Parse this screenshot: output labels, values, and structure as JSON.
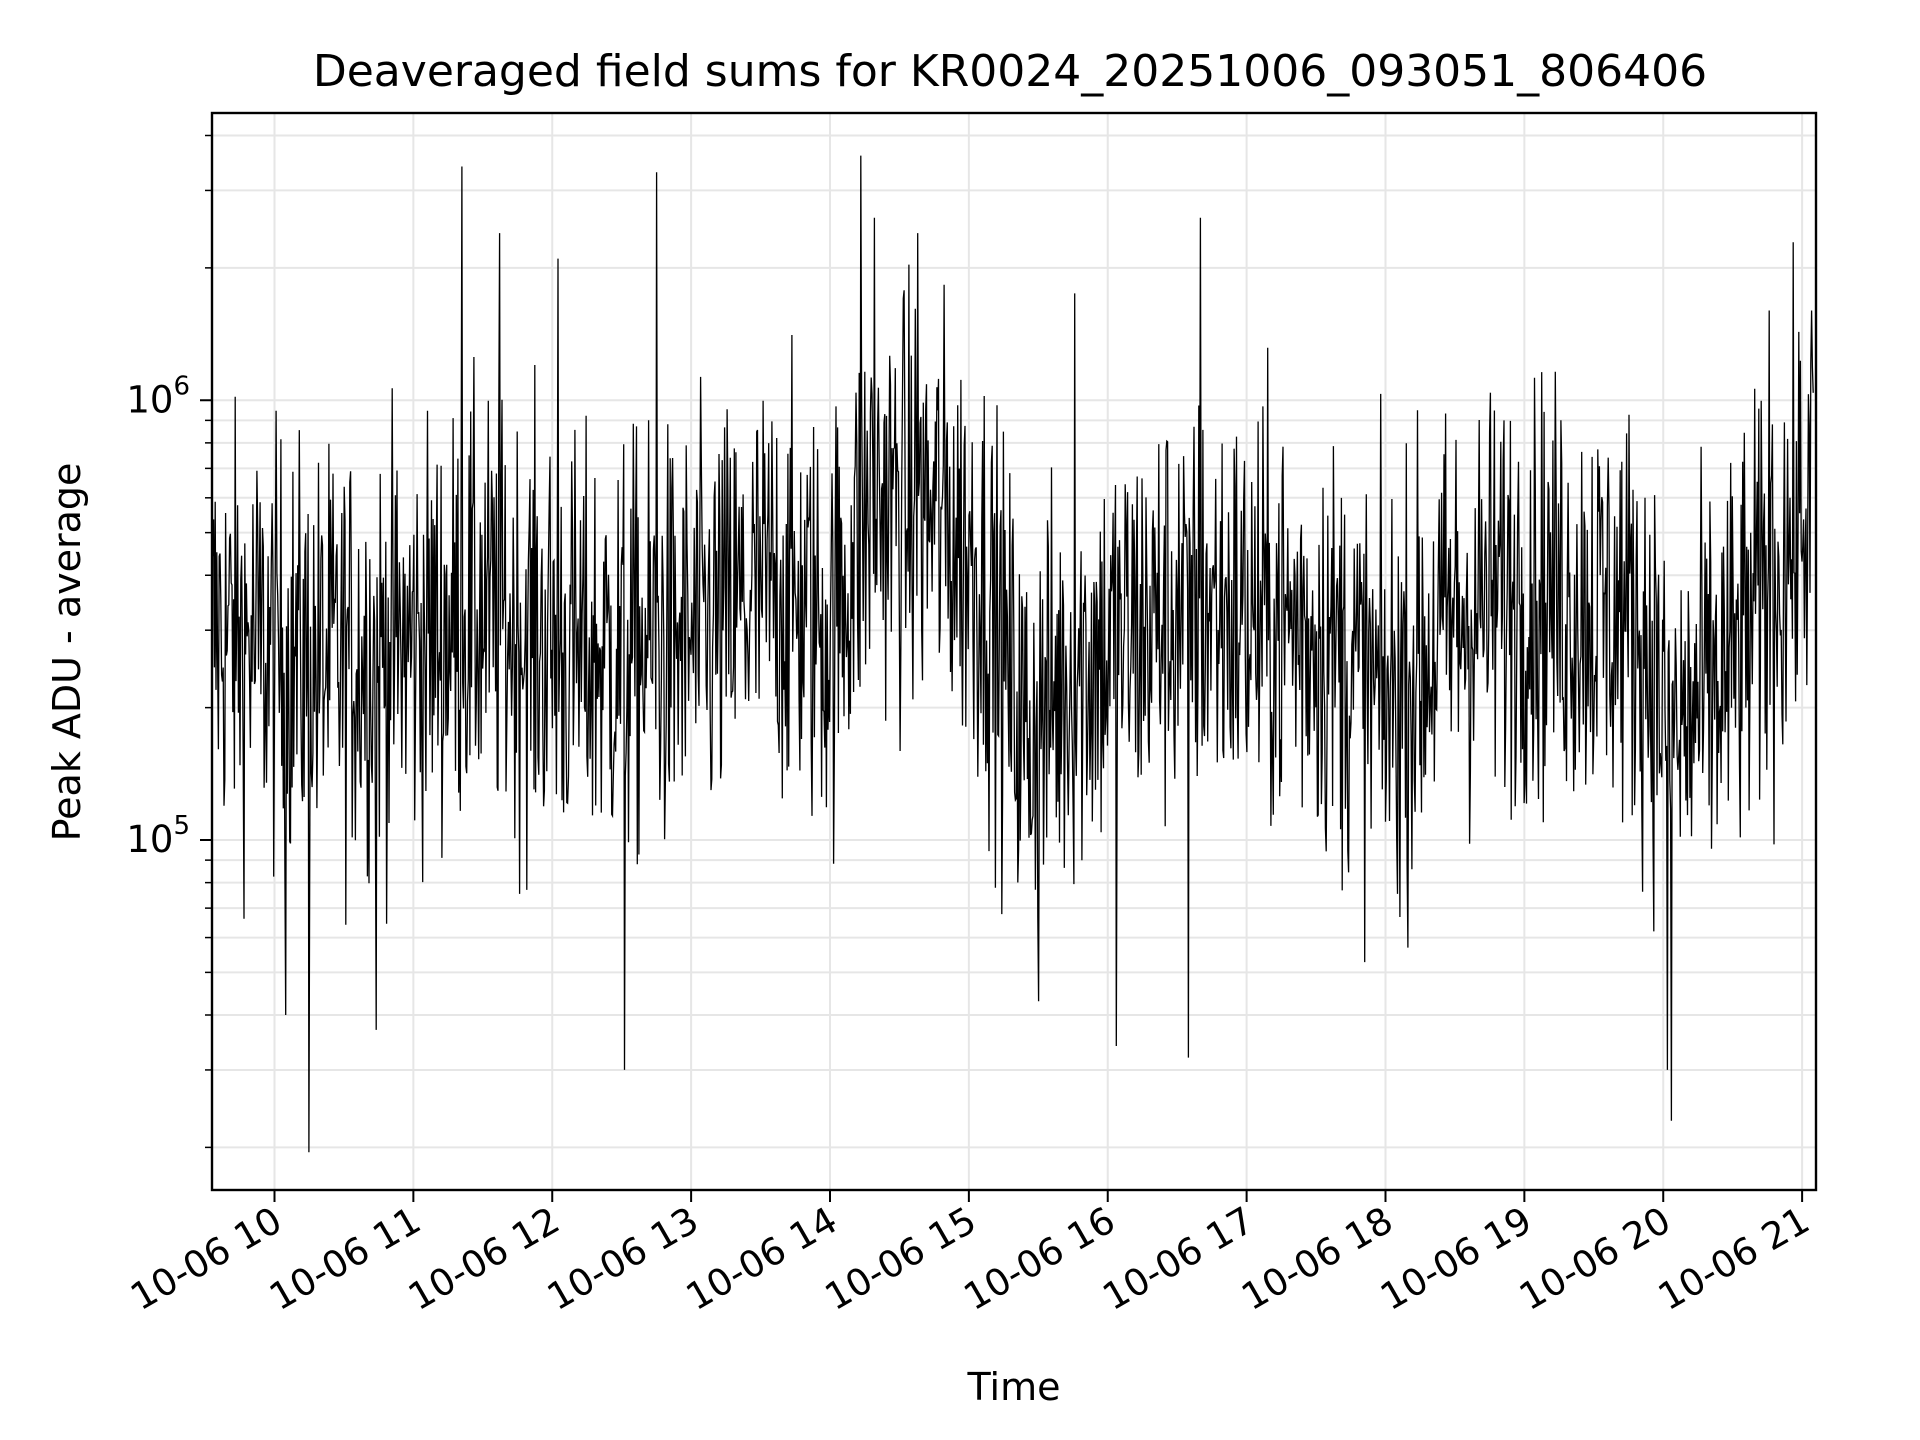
{
  "chart_data": {
    "type": "line",
    "title": "Deaveraged field sums for KR0024_20251006_093051_806406",
    "xlabel": "Time",
    "ylabel": "Peak ADU - average",
    "yscale": "log",
    "ylim": [
      16000,
      4500000
    ],
    "xlim_hours": [
      9.55,
      21.1
    ],
    "grid": true,
    "line_color": "#000000",
    "grid_color": "#e6e6e6",
    "x_ticks": [
      {
        "hour": 10,
        "label": "10-06 10"
      },
      {
        "hour": 11,
        "label": "10-06 11"
      },
      {
        "hour": 12,
        "label": "10-06 12"
      },
      {
        "hour": 13,
        "label": "10-06 13"
      },
      {
        "hour": 14,
        "label": "10-06 14"
      },
      {
        "hour": 15,
        "label": "10-06 15"
      },
      {
        "hour": 16,
        "label": "10-06 16"
      },
      {
        "hour": 17,
        "label": "10-06 17"
      },
      {
        "hour": 18,
        "label": "10-06 18"
      },
      {
        "hour": 19,
        "label": "10-06 19"
      },
      {
        "hour": 20,
        "label": "10-06 20"
      },
      {
        "hour": 21,
        "label": "10-06 21"
      }
    ],
    "y_ticks": [
      {
        "value": 100000,
        "base": "10",
        "exp": "5"
      },
      {
        "value": 1000000,
        "base": "10",
        "exp": "6"
      }
    ],
    "series": [
      {
        "name": "deaveraged field sum",
        "description": "dense noisy series, approx 2000 points",
        "sample_count": 2000,
        "x_range_hours": [
          9.55,
          21.08
        ],
        "level_profile": [
          {
            "hour": 9.55,
            "median": 300000
          },
          {
            "hour": 10.3,
            "median": 250000
          },
          {
            "hour": 11.0,
            "median": 280000
          },
          {
            "hour": 11.5,
            "median": 330000
          },
          {
            "hour": 12.2,
            "median": 260000
          },
          {
            "hour": 13.0,
            "median": 280000
          },
          {
            "hour": 13.6,
            "median": 380000
          },
          {
            "hour": 14.0,
            "median": 300000
          },
          {
            "hour": 14.3,
            "median": 600000
          },
          {
            "hour": 14.8,
            "median": 550000
          },
          {
            "hour": 15.1,
            "median": 400000
          },
          {
            "hour": 15.4,
            "median": 170000
          },
          {
            "hour": 15.8,
            "median": 250000
          },
          {
            "hour": 16.6,
            "median": 350000
          },
          {
            "hour": 17.0,
            "median": 320000
          },
          {
            "hour": 17.5,
            "median": 300000
          },
          {
            "hour": 18.0,
            "median": 200000
          },
          {
            "hour": 18.5,
            "median": 320000
          },
          {
            "hour": 19.0,
            "median": 380000
          },
          {
            "hour": 19.8,
            "median": 320000
          },
          {
            "hour": 20.1,
            "median": 170000
          },
          {
            "hour": 20.5,
            "median": 250000
          },
          {
            "hour": 21.08,
            "median": 600000
          }
        ],
        "notable_points": [
          {
            "hour": 10.25,
            "value": 19500
          },
          {
            "hour": 10.08,
            "value": 40000
          },
          {
            "hour": 10.73,
            "value": 37000
          },
          {
            "hour": 11.35,
            "value": 3400000
          },
          {
            "hour": 11.62,
            "value": 2400000
          },
          {
            "hour": 12.04,
            "value": 2100000
          },
          {
            "hour": 12.52,
            "value": 30000
          },
          {
            "hour": 12.75,
            "value": 3300000
          },
          {
            "hour": 14.22,
            "value": 3600000
          },
          {
            "hour": 14.32,
            "value": 2600000
          },
          {
            "hour": 14.63,
            "value": 2400000
          },
          {
            "hour": 15.5,
            "value": 43000
          },
          {
            "hour": 15.76,
            "value": 1750000
          },
          {
            "hour": 16.06,
            "value": 34000
          },
          {
            "hour": 16.58,
            "value": 32000
          },
          {
            "hour": 16.67,
            "value": 2600000
          },
          {
            "hour": 20.03,
            "value": 30000
          },
          {
            "hour": 20.06,
            "value": 23000
          },
          {
            "hour": 20.76,
            "value": 1600000
          },
          {
            "hour": 21.07,
            "value": 1600000
          }
        ]
      }
    ]
  }
}
